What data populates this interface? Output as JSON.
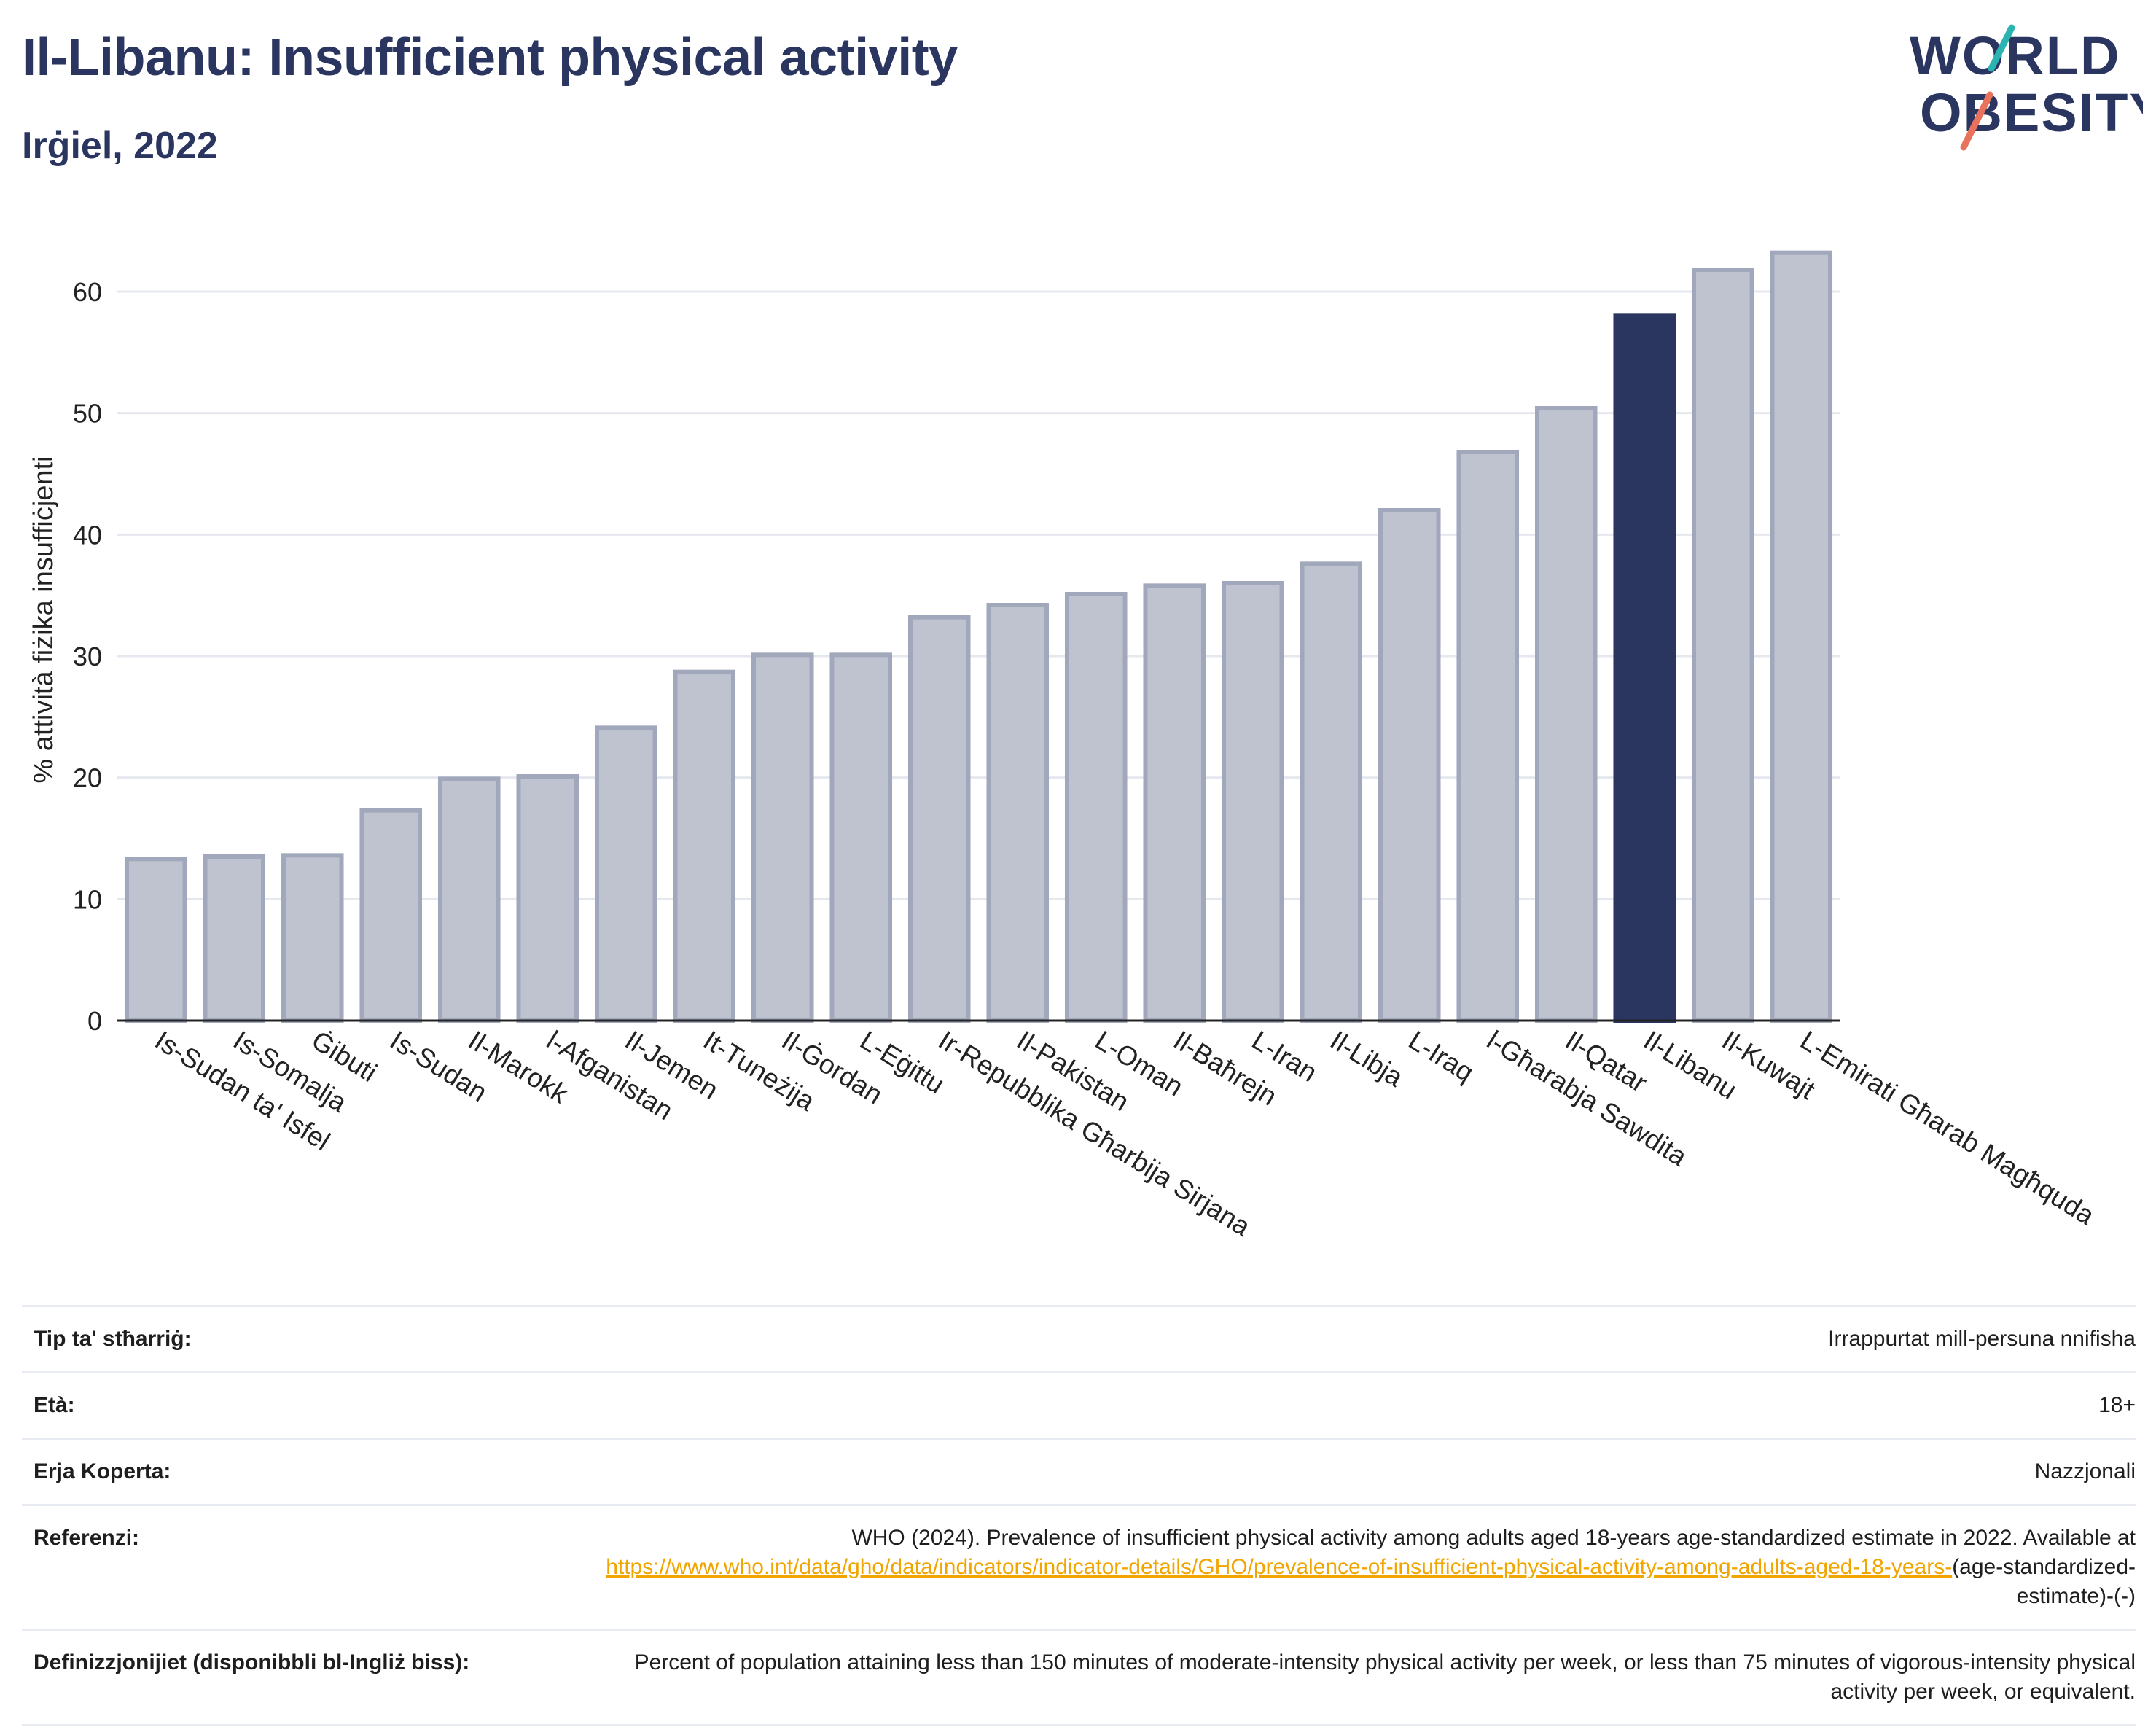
{
  "header": {
    "title": "Il-Libanu: Insufficient physical activity",
    "subtitle": "Irġiel, 2022"
  },
  "logo": {
    "line1": "WORLD",
    "line2": "OBESITY",
    "accent_teal": "#2ab3b1",
    "accent_coral": "#e8725c",
    "text_color": "#2a3560"
  },
  "chart_data": {
    "type": "bar",
    "title": "Il-Libanu: Insufficient physical activity",
    "subtitle": "Irġiel, 2022",
    "ylabel": "% attività fiżika insuffiċjenti",
    "xlabel": "",
    "ylim": [
      0,
      66
    ],
    "yticks": [
      0,
      10,
      20,
      30,
      40,
      50,
      60
    ],
    "grid": true,
    "highlight": "Il-Libanu",
    "colors": {
      "default": "#bfc3d0",
      "default_edge": "#a2a8bb",
      "highlight": "#2a3560"
    },
    "categories": [
      "Is-Sudan ta' Isfel",
      "Is-Somalja",
      "Ġibuti",
      "Is-Sudan",
      "Il-Marokk",
      "l-Afganistan",
      "Il-Jemen",
      "It-Tuneżija",
      "Il-Ġordan",
      "L-Eġittu",
      "Ir-Repubblika Għarbija Sirjana",
      "Il-Pakistan",
      "L-Oman",
      "Il-Baħrejn",
      "L-Iran",
      "Il-Libja",
      "L-Iraq",
      "l-Għarabja Sawdita",
      "Il-Qatar",
      "Il-Libanu",
      "Il-Kuwajt",
      "L-Emirati Għarab Magħquda"
    ],
    "values": [
      13.3,
      13.5,
      13.6,
      17.3,
      19.9,
      20.1,
      24.1,
      28.7,
      30.1,
      30.1,
      33.2,
      34.2,
      35.1,
      35.8,
      36.0,
      37.6,
      42.0,
      46.8,
      50.4,
      58.0,
      61.8,
      63.2
    ]
  },
  "info": {
    "rows": [
      {
        "label": "Tip ta' stħarriġ:",
        "value": "Irrappurtat mill-persuna nnifisha"
      },
      {
        "label": "Età:",
        "value": "18+"
      },
      {
        "label": "Erja Koperta:",
        "value": "Nazzjonali"
      },
      {
        "label": "Referenzi:",
        "value": "WHO (2024). Prevalence of insufficient physical activity among adults aged 18-years age-standardized estimate in 2022. Available at",
        "link": "https://www.who.int/data/gho/data/indicators/indicator-details/GHO/prevalence-of-insufficient-physical-activity-among-adults-aged-18-years-",
        "suffix": "(age-standardized-estimate)-(-)"
      },
      {
        "label": "Definizzjonijiet (disponibbli bl-Ingliż biss):",
        "value": "Percent of population attaining less than 150 minutes of moderate-intensity physical activity per week, or less than 75 minutes of vigorous-intensity physical activity per week, or equivalent."
      }
    ]
  }
}
